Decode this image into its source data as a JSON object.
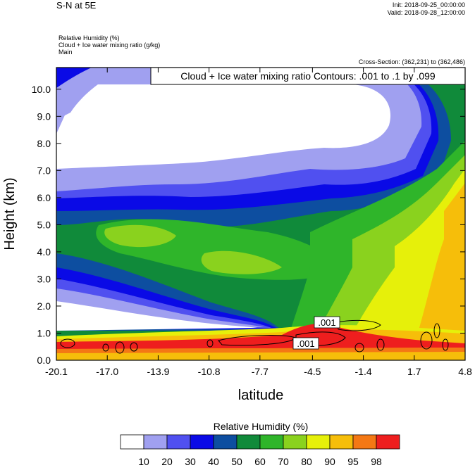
{
  "header": {
    "title": "S-N at 5E",
    "init": "Init: 2018-09-25_00:00:00",
    "valid": "Valid: 2018-09-28_12:00:00",
    "field_lines": [
      "Relative Humidity   (%)",
      "Cloud + Ice water mixing ratio   (g/kg)",
      "Main"
    ],
    "cross_section": "Cross-Section: (362,231) to (362,486)"
  },
  "colors": {
    "bands": [
      "#ffffff",
      "#a0a0f0",
      "#5050f0",
      "#0a0ae6",
      "#0d4ea0",
      "#108a3a",
      "#2fb52a",
      "#8ad21e",
      "#e6f00a",
      "#f6be0a",
      "#f47814",
      "#ee1e1e"
    ]
  },
  "chart_data": {
    "type": "heatmap",
    "contour_title": "Cloud + Ice water mixing ratio Contours: .001 to .1 by .099",
    "xlabel": "latitude",
    "ylabel": "Height (km)",
    "x_ticks": [
      "-20.1",
      "-17.0",
      "-13.9",
      "-10.8",
      "-7.7",
      "-4.5",
      "-1.4",
      "1.7",
      "4.8"
    ],
    "y_ticks": [
      "0.0",
      "1.0",
      "2.0",
      "3.0",
      "4.0",
      "5.0",
      "6.0",
      "7.0",
      "8.0",
      "9.0",
      "10.0"
    ],
    "xlim": [
      -20.1,
      4.8
    ],
    "ylim": [
      0,
      10.8
    ],
    "contour_labels": [
      ".001",
      ".001"
    ],
    "colorbar": {
      "title": "Relative Humidity  (%)",
      "levels": [
        "10",
        "20",
        "30",
        "40",
        "50",
        "60",
        "70",
        "80",
        "90",
        "95",
        "98"
      ]
    }
  }
}
